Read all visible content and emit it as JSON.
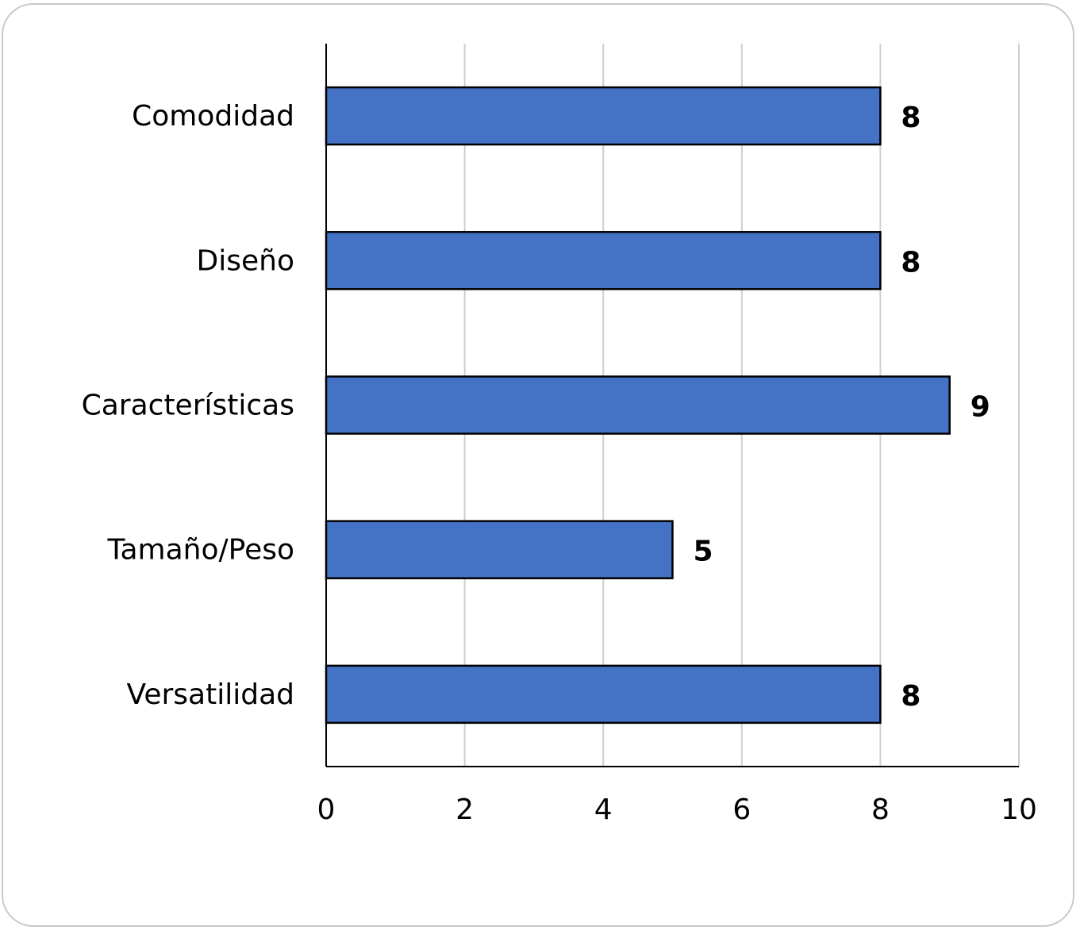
{
  "chart_data": {
    "type": "bar",
    "orientation": "horizontal",
    "categories": [
      "Comodidad",
      "Diseño",
      "Características",
      "Tamaño/Peso",
      "Versatilidad"
    ],
    "values": [
      8,
      8,
      9,
      5,
      8
    ],
    "data_labels": [
      "8",
      "8",
      "9",
      "5",
      "8"
    ],
    "x_ticks": [
      "0",
      "2",
      "4",
      "6",
      "8",
      "10"
    ],
    "title": "",
    "xlabel": "",
    "ylabel": "",
    "xlim": [
      0,
      10
    ],
    "grid": true,
    "legend": "none",
    "colors": {
      "bar": "#4472c4",
      "bar_border": "#000000",
      "grid": "#cfcfcf",
      "axis": "#000000"
    }
  }
}
